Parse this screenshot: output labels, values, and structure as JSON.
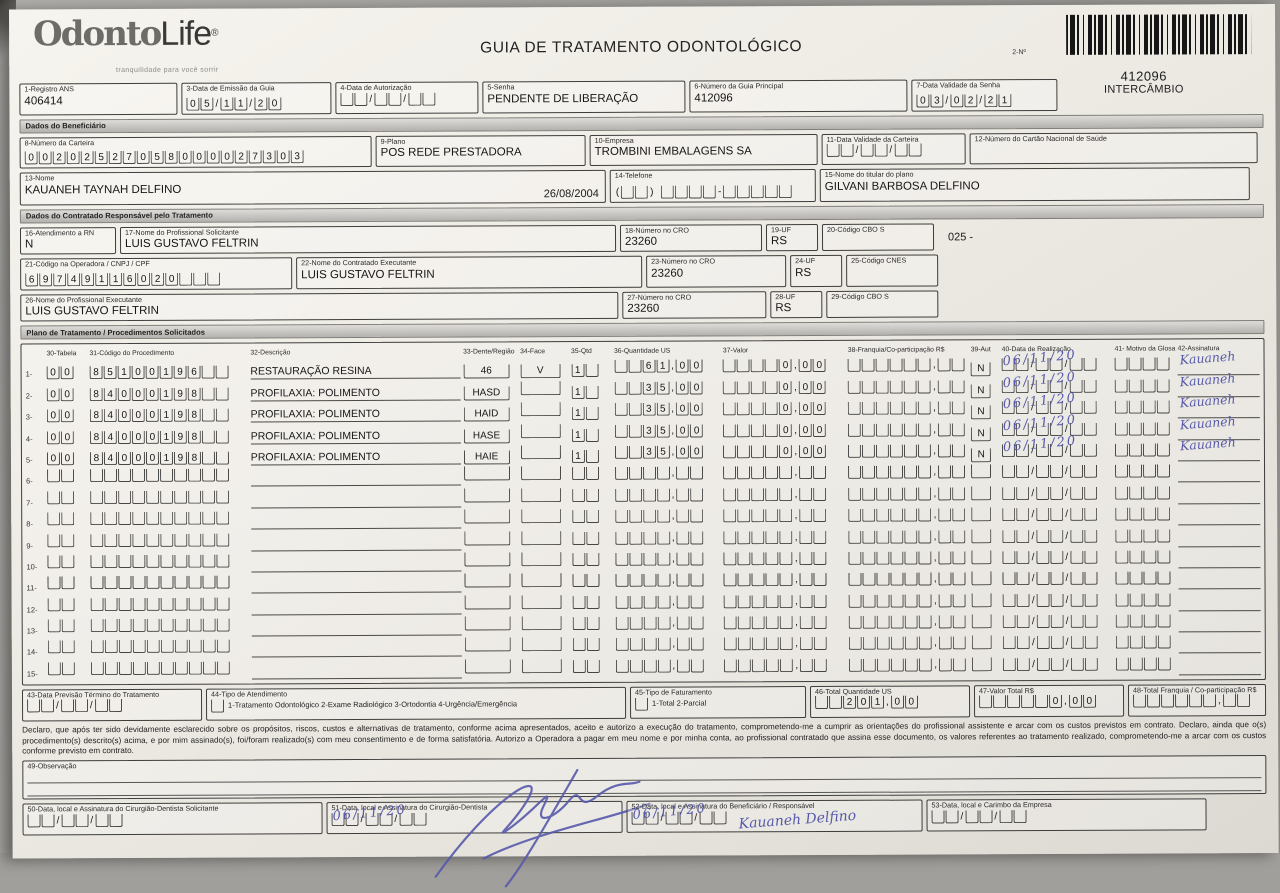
{
  "brand": {
    "part1": "Odonto",
    "part2": "Life",
    "registered": "®",
    "tagline": "tranquilidade para você sorrir"
  },
  "title": "GUIA DE TRATAMENTO ODONTOLÓGICO",
  "barcode": {
    "label": "2-Nº",
    "number": "412096",
    "mode": "INTERCÂMBIO"
  },
  "sections": {
    "beneficiario": "Dados do Beneficiário",
    "contratado": "Dados do Contratado Responsável pelo Tratamento",
    "plano": "Plano de Tratamento / Procedimentos Solicitados"
  },
  "fields": {
    "f1": {
      "label": "1-Registro ANS",
      "value": "406414"
    },
    "f3": {
      "label": "3-Data de Emissão da Guia",
      "value": "05/11/20"
    },
    "f4": {
      "label": "4-Data de Autorização",
      "value": ""
    },
    "f5": {
      "label": "5-Senha",
      "value": "PENDENTE DE LIBERAÇÃO"
    },
    "f6": {
      "label": "6-Número da Guia Principal",
      "value": "412096"
    },
    "f7": {
      "label": "7-Data Validade da Senha",
      "value": "03/02/21"
    },
    "f8": {
      "label": "8-Número da Carteira",
      "value": "00202527058000027303"
    },
    "f9": {
      "label": "9-Plano",
      "value": "POS REDE PRESTADORA"
    },
    "f10": {
      "label": "10-Empresa",
      "value": "TROMBINI EMBALAGENS SA"
    },
    "f11": {
      "label": "11-Data Validade da Carteira",
      "value": ""
    },
    "f12": {
      "label": "12-Número do Cartão Nacional de Saúde",
      "value": ""
    },
    "f13": {
      "label": "13-Nome",
      "value": "KAUANEH TAYNAH DELFINO",
      "extra": "26/08/2004"
    },
    "f14": {
      "label": "14-Telefone",
      "value": ""
    },
    "f15": {
      "label": "15-Nome do titular do plano",
      "value": "GILVANI BARBOSA DELFINO"
    },
    "f16": {
      "label": "16-Atendimento a RN",
      "value": "N"
    },
    "f17": {
      "label": "17-Nome do Profissional Solicitante",
      "value": "LUIS GUSTAVO FELTRIN"
    },
    "f18": {
      "label": "18-Número no CRO",
      "value": "23260"
    },
    "f19": {
      "label": "19-UF",
      "value": "RS"
    },
    "f20": {
      "label": "20-Código CBO S",
      "value": ""
    },
    "note20": "025 -",
    "f21": {
      "label": "21-Código na Operadora / CNPJ / CPF",
      "value": "69749116020"
    },
    "f22": {
      "label": "22-Nome do Contratado Executante",
      "value": "LUIS GUSTAVO FELTRIN"
    },
    "f23": {
      "label": "23-Número no CRO",
      "value": "23260"
    },
    "f24": {
      "label": "24-UF",
      "value": "RS"
    },
    "f25": {
      "label": "25-Código CNES",
      "value": ""
    },
    "f26": {
      "label": "26-Nome do Profissional Executante",
      "value": "LUIS GUSTAVO FELTRIN"
    },
    "f27": {
      "label": "27-Número no CRO",
      "value": "23260"
    },
    "f28": {
      "label": "28-UF",
      "value": "RS"
    },
    "f29": {
      "label": "29-Código CBO S",
      "value": ""
    },
    "f43": {
      "label": "43-Data Previsão Término do Tratamento",
      "value": ""
    },
    "f44": {
      "label": "44-Tipo de Atendimento",
      "value": "",
      "options": "1-Tratamento Odontológico  2-Exame Radiológico  3-Ortodontia  4-Urgência/Emergência"
    },
    "f45": {
      "label": "45-Tipo de Faturamento",
      "value": "",
      "options": "1-Total  2-Parcial"
    },
    "f46": {
      "label": "46-Total Quantidade US",
      "value": "201,00"
    },
    "f47": {
      "label": "47-Valor Total R$",
      "value": "0,00"
    },
    "f48": {
      "label": "48-Total Franquia / Co-participação R$",
      "value": ""
    },
    "f49": {
      "label": "49-Observação",
      "value": ""
    },
    "f50": {
      "label": "50-Data, local e Assinatura do Cirurgião-Dentista Solicitante",
      "value": ""
    },
    "f51": {
      "label": "51-Data, local e Assinatura do Cirurgião-Dentista",
      "value": "06/11/20"
    },
    "f52": {
      "label": "52-Data, local e Assinatura do Beneficiário / Responsável",
      "value": "06/11/20",
      "signature": "Kauaneh Delfino"
    },
    "f53": {
      "label": "53-Data, local e Carimbo da Empresa",
      "value": ""
    }
  },
  "table": {
    "headers": [
      "30-Tabela",
      "31-Código do Procedimento",
      "32-Descrição",
      "33-Dente/Região",
      "34-Face",
      "35-Qtd",
      "36-Quantidade US",
      "37-Valor",
      "38-Franquia/Co-participação R$",
      "39-Aut",
      "40-Data de Realização",
      "41- Motivo da Glosa",
      "42-Assinatura"
    ],
    "rows": [
      {
        "n": "1",
        "tabela": "00",
        "codigo": "85100196",
        "descricao": "RESTAURAÇÃO RESINA",
        "dente": "46",
        "face": "V",
        "qtd": "1",
        "us": "61,00",
        "valor": "0,00",
        "franquia": "",
        "aut": "N",
        "data": "06/11/20",
        "glosa": "",
        "assinatura": "Kauaneh"
      },
      {
        "n": "2",
        "tabela": "00",
        "codigo": "84000198",
        "descricao": "PROFILAXIA: POLIMENTO",
        "dente": "HASD",
        "face": "",
        "qtd": "1",
        "us": "35,00",
        "valor": "0,00",
        "franquia": "",
        "aut": "N",
        "data": "06/11/20",
        "glosa": "",
        "assinatura": "Kauaneh"
      },
      {
        "n": "3",
        "tabela": "00",
        "codigo": "84000198",
        "descricao": "PROFILAXIA: POLIMENTO",
        "dente": "HAID",
        "face": "",
        "qtd": "1",
        "us": "35,00",
        "valor": "0,00",
        "franquia": "",
        "aut": "N",
        "data": "06/11/20",
        "glosa": "",
        "assinatura": "Kauaneh"
      },
      {
        "n": "4",
        "tabela": "00",
        "codigo": "84000198",
        "descricao": "PROFILAXIA: POLIMENTO",
        "dente": "HASE",
        "face": "",
        "qtd": "1",
        "us": "35,00",
        "valor": "0,00",
        "franquia": "",
        "aut": "N",
        "data": "06/11/20",
        "glosa": "",
        "assinatura": "Kauaneh"
      },
      {
        "n": "5",
        "tabela": "00",
        "codigo": "84000198",
        "descricao": "PROFILAXIA: POLIMENTO",
        "dente": "HAIE",
        "face": "",
        "qtd": "1",
        "us": "35,00",
        "valor": "0,00",
        "franquia": "",
        "aut": "N",
        "data": "06/11/20",
        "glosa": "",
        "assinatura": "Kauaneh"
      },
      {
        "n": "6"
      },
      {
        "n": "7"
      },
      {
        "n": "8"
      },
      {
        "n": "9"
      },
      {
        "n": "10"
      },
      {
        "n": "11"
      },
      {
        "n": "12"
      },
      {
        "n": "13"
      },
      {
        "n": "14"
      },
      {
        "n": "15"
      }
    ]
  },
  "declaration": "Declaro, que após ter sido devidamente esclarecido sobre os propósitos, riscos, custos e alternativas de tratamento, conforme acima apresentados, aceito e autorizo a execução do tratamento, comprometendo-me a cumprir as orientações do profissional assistente e arcar com os custos previstos em contrato. Declaro, ainda que o(s) procedimento(s) descrito(s) acima, e por mim assinado(s), foi/foram realizado(s) com meu consentimento e de forma satisfatória. Autorizo a Operadora a pagar em meu nome e por minha conta, ao profissional contratado que assina esse documento, os valores referentes ao tratamento realizado, comprometendo-me a arcar com os custos conforme previsto em contrato."
}
